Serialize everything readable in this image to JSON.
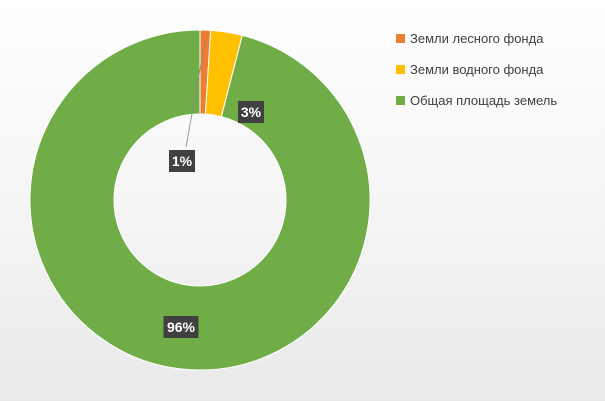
{
  "chart_data": {
    "type": "pie",
    "donut": true,
    "series": [
      {
        "name": "Земли лесного фонда",
        "value": 1,
        "label": "1%",
        "color": "#ED7D31"
      },
      {
        "name": "Земли водного фонда",
        "value": 3,
        "label": "3%",
        "color": "#FFC000"
      },
      {
        "name": "Общая площадь земель",
        "value": 96,
        "label": "96%",
        "color": "#70AD47"
      }
    ],
    "legend": "right",
    "data_label_style": {
      "background": "#404040",
      "text_color": "#ffffff"
    }
  }
}
